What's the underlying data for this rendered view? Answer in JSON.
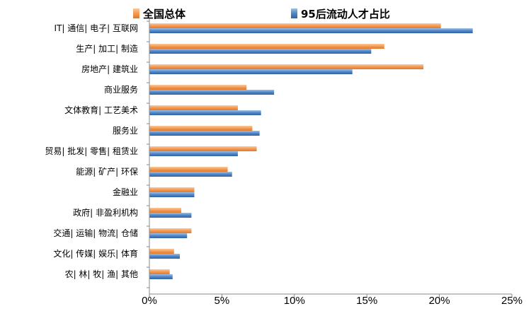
{
  "chart_data": {
    "type": "bar",
    "orientation": "horizontal",
    "categories": [
      "IT| 通信| 电子| 互联网",
      "生产| 加工| 制造",
      "房地产| 建筑业",
      "商业服务",
      "文体教育| 工艺美术",
      "服务业",
      "贸易| 批发| 零售| 租赁业",
      "能源| 矿产| 环保",
      "金融业",
      "政府| 非盈利机构",
      "交通| 运输| 物流| 仓储",
      "文化| 传媒| 娱乐| 体育",
      "农| 林| 牧| 渔| 其他"
    ],
    "series": [
      {
        "name": "全国总体",
        "color": "#f39a52",
        "values": [
          20.1,
          16.2,
          18.9,
          6.7,
          6.1,
          7.1,
          7.4,
          5.4,
          3.1,
          2.2,
          2.9,
          1.7,
          1.4
        ]
      },
      {
        "name": "95后流动人才占比",
        "color": "#4f86c6",
        "values": [
          22.3,
          15.3,
          14.0,
          8.6,
          7.7,
          7.6,
          6.1,
          5.7,
          3.1,
          2.9,
          2.6,
          2.1,
          1.6
        ]
      }
    ],
    "xlim": [
      0,
      25
    ],
    "xticks": [
      "0%",
      "5%",
      "10%",
      "15%",
      "20%",
      "25%"
    ],
    "legend": "top",
    "grid": false
  }
}
